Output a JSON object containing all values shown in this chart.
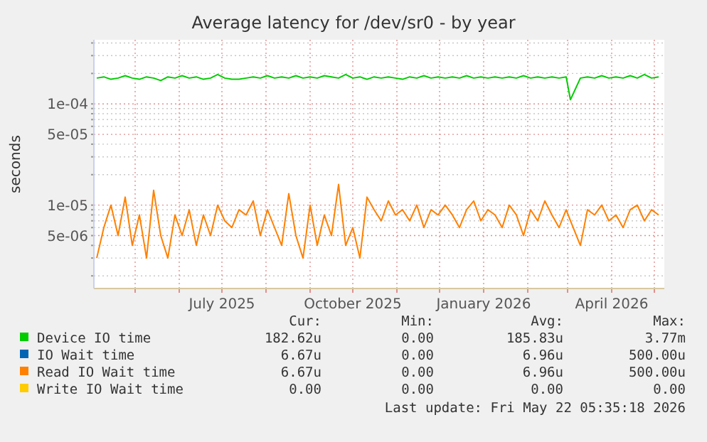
{
  "chart_data": {
    "type": "line",
    "title": "Average latency for /dev/sr0 - by year",
    "ylabel": "seconds",
    "log": "y",
    "grid": true,
    "legend": "bottom",
    "line_style": "solid",
    "x": [
      "2025-04-04",
      "2025-04-09",
      "2025-04-14",
      "2025-04-19",
      "2025-04-24",
      "2025-04-29",
      "2025-05-04",
      "2025-05-09",
      "2025-05-14",
      "2025-05-19",
      "2025-05-24",
      "2025-05-29",
      "2025-06-03",
      "2025-06-08",
      "2025-06-13",
      "2025-06-18",
      "2025-06-23",
      "2025-06-28",
      "2025-07-03",
      "2025-07-08",
      "2025-07-13",
      "2025-07-18",
      "2025-07-23",
      "2025-07-28",
      "2025-08-02",
      "2025-08-07",
      "2025-08-12",
      "2025-08-17",
      "2025-08-22",
      "2025-08-27",
      "2025-09-01",
      "2025-09-06",
      "2025-09-11",
      "2025-09-16",
      "2025-09-21",
      "2025-09-26",
      "2025-10-01",
      "2025-10-06",
      "2025-10-11",
      "2025-10-16",
      "2025-10-21",
      "2025-10-26",
      "2025-10-31",
      "2025-11-05",
      "2025-11-10",
      "2025-11-15",
      "2025-11-20",
      "2025-11-25",
      "2025-11-30",
      "2025-12-05",
      "2025-12-10",
      "2025-12-15",
      "2025-12-20",
      "2025-12-25",
      "2025-12-30",
      "2026-01-04",
      "2026-01-09",
      "2026-01-14",
      "2026-01-19",
      "2026-01-24",
      "2026-01-29",
      "2026-02-03",
      "2026-02-08",
      "2026-02-13",
      "2026-02-18",
      "2026-02-23",
      "2026-02-28",
      "2026-03-03",
      "2026-03-10",
      "2026-03-15",
      "2026-03-20",
      "2026-03-25",
      "2026-03-30",
      "2026-04-04",
      "2026-04-09",
      "2026-04-14",
      "2026-04-19",
      "2026-04-24",
      "2026-04-29",
      "2026-05-04"
    ],
    "xlim": [
      "2025-04-02",
      "2026-05-08"
    ],
    "xticks": [
      {
        "value": "2025-05-01",
        "label": null
      },
      {
        "value": "2025-06-01",
        "label": null
      },
      {
        "value": "2025-07-01",
        "label": "July 2025"
      },
      {
        "value": "2025-08-01",
        "label": null
      },
      {
        "value": "2025-09-01",
        "label": null
      },
      {
        "value": "2025-10-01",
        "label": "October 2025"
      },
      {
        "value": "2025-11-01",
        "label": null
      },
      {
        "value": "2025-12-01",
        "label": null
      },
      {
        "value": "2026-01-01",
        "label": "January 2026"
      },
      {
        "value": "2026-02-01",
        "label": null
      },
      {
        "value": "2026-03-01",
        "label": null
      },
      {
        "value": "2026-04-01",
        "label": "April 2026"
      },
      {
        "value": "2026-05-01",
        "label": null
      }
    ],
    "ylim": [
      1.5e-06,
      0.00043
    ],
    "yticks": [
      {
        "value": 2e-06,
        "label": null
      },
      {
        "value": 3e-06,
        "label": null
      },
      {
        "value": 4e-06,
        "label": null
      },
      {
        "value": 5e-06,
        "label": "5e-06"
      },
      {
        "value": 6e-06,
        "label": null
      },
      {
        "value": 7e-06,
        "label": null
      },
      {
        "value": 8e-06,
        "label": null
      },
      {
        "value": 9e-06,
        "label": null
      },
      {
        "value": 1e-05,
        "label": "1e-05"
      },
      {
        "value": 2e-05,
        "label": null
      },
      {
        "value": 3e-05,
        "label": null
      },
      {
        "value": 4e-05,
        "label": null
      },
      {
        "value": 5e-05,
        "label": "5e-05"
      },
      {
        "value": 6e-05,
        "label": null
      },
      {
        "value": 7e-05,
        "label": null
      },
      {
        "value": 8e-05,
        "label": null
      },
      {
        "value": 9e-05,
        "label": null
      },
      {
        "value": 0.0001,
        "label": "1e-04"
      },
      {
        "value": 0.0002,
        "label": null
      },
      {
        "value": 0.0003,
        "label": null
      },
      {
        "value": 0.0004,
        "label": null
      }
    ],
    "series": [
      {
        "name": "Device IO time",
        "color": "#00cc00",
        "values": [
          0.00018,
          0.000185,
          0.000175,
          0.00018,
          0.00019,
          0.00018,
          0.000175,
          0.000185,
          0.00018,
          0.00017,
          0.000185,
          0.00018,
          0.00019,
          0.00018,
          0.000185,
          0.000175,
          0.00018,
          0.000195,
          0.00018,
          0.000175,
          0.000175,
          0.00018,
          0.000185,
          0.00018,
          0.00019,
          0.00018,
          0.000185,
          0.00018,
          0.00019,
          0.00018,
          0.000185,
          0.00018,
          0.00019,
          0.000185,
          0.00018,
          0.000195,
          0.00018,
          0.000185,
          0.000175,
          0.000185,
          0.00018,
          0.000185,
          0.00018,
          0.000175,
          0.000185,
          0.00018,
          0.00019,
          0.00018,
          0.000185,
          0.00018,
          0.000185,
          0.00018,
          0.00019,
          0.00018,
          0.000185,
          0.00018,
          0.000185,
          0.00018,
          0.000185,
          0.00018,
          0.00019,
          0.00018,
          0.000185,
          0.00018,
          0.000185,
          0.00018,
          0.000185,
          0.00011,
          0.00018,
          0.000185,
          0.00018,
          0.00019,
          0.00018,
          0.000185,
          0.00018,
          0.00019,
          0.00018,
          0.000195,
          0.00018,
          0.000185
        ]
      },
      {
        "name": "IO Wait time",
        "color": "#0066b3",
        "values": [
          null,
          null,
          null,
          null,
          null,
          null,
          null,
          null,
          null,
          null,
          null,
          null,
          null,
          null,
          null,
          null,
          null,
          null,
          null,
          null,
          null,
          null,
          null,
          null,
          null,
          null,
          null,
          null,
          null,
          null,
          null,
          null,
          null,
          null,
          null,
          null,
          null,
          null,
          null,
          null,
          null,
          null,
          null,
          null,
          null,
          null,
          null,
          null,
          null,
          null,
          null,
          null,
          null,
          null,
          null,
          null,
          null,
          null,
          null,
          null,
          null,
          null,
          null,
          null,
          null,
          null,
          null,
          null,
          null,
          null,
          null,
          null,
          null,
          null,
          null,
          null,
          null,
          null,
          null,
          null
        ]
      },
      {
        "name": "Read IO Wait time",
        "color": "#ff8000",
        "values": [
          3e-06,
          6e-06,
          1e-05,
          5e-06,
          1.2e-05,
          4e-06,
          8e-06,
          3e-06,
          1.4e-05,
          5e-06,
          3e-06,
          8e-06,
          5e-06,
          9e-06,
          4e-06,
          8e-06,
          5e-06,
          1e-05,
          7e-06,
          6e-06,
          9e-06,
          8e-06,
          1.1e-05,
          5e-06,
          9e-06,
          6e-06,
          4e-06,
          1.3e-05,
          5e-06,
          3e-06,
          1e-05,
          4e-06,
          8e-06,
          5e-06,
          1.6e-05,
          4e-06,
          6e-06,
          3e-06,
          1.2e-05,
          9e-06,
          7e-06,
          1.1e-05,
          8e-06,
          9e-06,
          7e-06,
          1e-05,
          6e-06,
          9e-06,
          8e-06,
          1e-05,
          8e-06,
          6e-06,
          9e-06,
          1.1e-05,
          7e-06,
          9e-06,
          8e-06,
          6e-06,
          1e-05,
          8e-06,
          5e-06,
          9e-06,
          7e-06,
          1.1e-05,
          8e-06,
          6e-06,
          9e-06,
          7e-06,
          4e-06,
          9e-06,
          8e-06,
          1e-05,
          7e-06,
          8e-06,
          6e-06,
          9e-06,
          1e-05,
          7e-06,
          9e-06,
          8e-06
        ]
      },
      {
        "name": "Write IO Wait time",
        "color": "#ffcc00",
        "values": [
          null,
          null,
          null,
          null,
          null,
          null,
          null,
          null,
          null,
          null,
          null,
          null,
          null,
          null,
          null,
          null,
          null,
          null,
          null,
          null,
          null,
          null,
          null,
          null,
          null,
          null,
          null,
          null,
          null,
          null,
          null,
          null,
          null,
          null,
          null,
          null,
          null,
          null,
          null,
          null,
          null,
          null,
          null,
          null,
          null,
          null,
          null,
          null,
          null,
          null,
          null,
          null,
          null,
          null,
          null,
          null,
          null,
          null,
          null,
          null,
          null,
          null,
          null,
          null,
          null,
          null,
          null,
          null,
          null,
          null,
          null,
          null,
          null,
          null,
          null,
          null,
          null,
          null,
          null,
          null
        ]
      }
    ],
    "annotations": [
      "Cur:",
      "Min:",
      "Avg:",
      "Max:",
      "182.62u",
      "0.00",
      "185.83u",
      "3.77m",
      "6.67u",
      "0.00",
      "6.96u",
      "500.00u",
      "6.67u",
      "0.00",
      "6.96u",
      "500.00u",
      "0.00",
      "0.00",
      "0.00",
      "0.00",
      "Last update: Fri May 22 05:35:18 2026"
    ]
  }
}
